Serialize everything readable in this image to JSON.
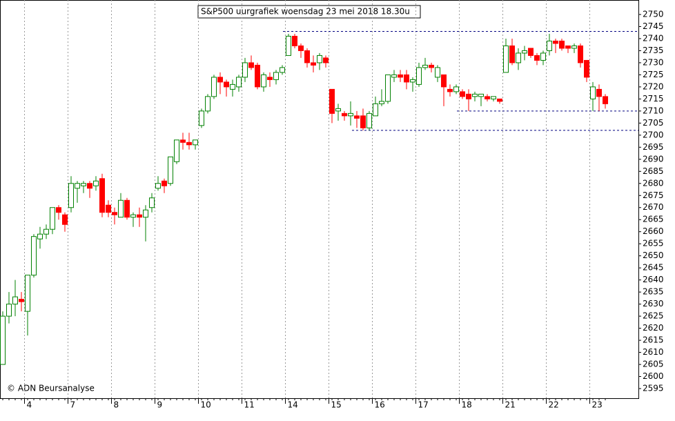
{
  "chart_data": {
    "type": "candlestick",
    "title": "S&P500 uurgrafiek woensdag 23 mei 2018  18.30u",
    "copyright": "© ADN Beursanalyse",
    "categories": [
      null,
      null,
      null,
      null,
      "4",
      null,
      null,
      null,
      null,
      null,
      null,
      "7",
      null,
      null,
      null,
      null,
      null,
      null,
      "8",
      null,
      null,
      null,
      null,
      null,
      null,
      "9",
      null,
      null,
      null,
      null,
      null,
      null,
      "10",
      null,
      null,
      null,
      null,
      null,
      null,
      "11",
      null,
      null,
      null,
      null,
      null,
      null,
      "14",
      null,
      null,
      null,
      null,
      null,
      null,
      "15",
      null,
      null,
      null,
      null,
      null,
      null,
      "16",
      null,
      null,
      null,
      null,
      null,
      null,
      "17",
      null,
      null,
      null,
      null,
      null,
      null,
      "18",
      null,
      null,
      null,
      null,
      null,
      null,
      "21",
      null,
      null,
      null,
      null,
      null,
      null,
      "22",
      null,
      null,
      null,
      null,
      null,
      null,
      "23",
      null,
      null
    ],
    "open": [
      2605,
      2625,
      2630,
      2632,
      2627,
      2642,
      2657,
      2659,
      2661,
      2670,
      2667,
      2670,
      2678,
      2679,
      2680,
      2679,
      2682,
      2671,
      2668,
      2666,
      2673,
      2666,
      2667,
      2666,
      2670,
      2678,
      2681,
      2680,
      2689,
      2698,
      2697,
      2696,
      2704,
      2710,
      2716,
      2724,
      2722,
      2719,
      2720,
      2724,
      2730,
      2729,
      2720,
      2724,
      2723,
      2726,
      2733,
      2741,
      2737,
      2735,
      2730,
      2730,
      2732,
      2719,
      2710,
      2709,
      2708,
      2708,
      2708,
      2703,
      2708,
      2713,
      2714,
      2724,
      2725,
      2725,
      2722,
      2721,
      2728,
      2729,
      2724,
      2725,
      2719,
      2718,
      2718,
      2717,
      2716,
      2716,
      2716,
      2715,
      2715,
      2726,
      2737,
      2730,
      2734,
      2736,
      2733,
      2731,
      2735,
      2739,
      2739,
      2737,
      2736,
      2737,
      2731,
      2715,
      2719,
      2716
    ],
    "high": [
      2627,
      2635,
      2640,
      2635,
      2642,
      2659,
      2662,
      2663,
      2670,
      2671,
      2668,
      2683,
      2681,
      2681,
      2681,
      2683,
      2684,
      2673,
      2670,
      2676,
      2674,
      2668,
      2670,
      2671,
      2676,
      2683,
      2682,
      2691,
      2698,
      2701,
      2701,
      2698,
      2711,
      2717,
      2725,
      2726,
      2723,
      2723,
      2725,
      2732,
      2733,
      2730,
      2726,
      2726,
      2727,
      2729,
      2742,
      2742,
      2738,
      2736,
      2733,
      2734,
      2733,
      2719,
      2713,
      2710,
      2714,
      2710,
      2711,
      2710,
      2716,
      2719,
      2725,
      2727,
      2727,
      2727,
      2724,
      2730,
      2732,
      2730,
      2729,
      2725,
      2721,
      2721,
      2719,
      2719,
      2718,
      2717,
      2717,
      2716,
      2715,
      2740,
      2740,
      2736,
      2737,
      2736,
      2734,
      2735,
      2742,
      2740,
      2740,
      2737,
      2738,
      2738,
      2731,
      2722,
      2721,
      2717
    ],
    "low": [
      2605,
      2622,
      2625,
      2627,
      2617,
      2641,
      2653,
      2657,
      2659,
      2665,
      2660,
      2668,
      2672,
      2676,
      2674,
      2677,
      2666,
      2666,
      2663,
      2666,
      2665,
      2662,
      2662,
      2656,
      2668,
      2677,
      2676,
      2679,
      2688,
      2694,
      2694,
      2694,
      2703,
      2709,
      2715,
      2717,
      2716,
      2716,
      2718,
      2722,
      2727,
      2719,
      2718,
      2720,
      2721,
      2725,
      2733,
      2736,
      2732,
      2728,
      2726,
      2727,
      2728,
      2705,
      2706,
      2706,
      2704,
      2703,
      2702,
      2702,
      2708,
      2712,
      2713,
      2722,
      2722,
      2719,
      2718,
      2720,
      2727,
      2726,
      2722,
      2712,
      2716,
      2717,
      2715,
      2710,
      2714,
      2712,
      2714,
      2714,
      2713,
      2726,
      2729,
      2727,
      2731,
      2732,
      2729,
      2729,
      2733,
      2734,
      2735,
      2734,
      2734,
      2728,
      2722,
      2710,
      2710,
      2711
    ],
    "close": [
      2625,
      2630,
      2633,
      2631,
      2642,
      2658,
      2659,
      2661,
      2670,
      2668,
      2663,
      2680,
      2680,
      2680,
      2678,
      2681,
      2668,
      2668,
      2667,
      2673,
      2666,
      2667,
      2666,
      2669,
      2674,
      2680,
      2679,
      2691,
      2698,
      2697,
      2696,
      2698,
      2710,
      2716,
      2724,
      2722,
      2720,
      2721,
      2724,
      2730,
      2728,
      2720,
      2725,
      2723,
      2726,
      2728,
      2741,
      2737,
      2735,
      2730,
      2729,
      2733,
      2730,
      2709,
      2711,
      2708,
      2709,
      2707,
      2703,
      2709,
      2713,
      2714,
      2725,
      2725,
      2724,
      2722,
      2723,
      2728,
      2729,
      2728,
      2728,
      2720,
      2718,
      2720,
      2716,
      2715,
      2717,
      2717,
      2715,
      2716,
      2714,
      2737,
      2730,
      2734,
      2735,
      2733,
      2731,
      2734,
      2739,
      2738,
      2736,
      2736,
      2737,
      2730,
      2724,
      2720,
      2716,
      2713
    ],
    "up_color": "#008000",
    "down_color": "#ff0000",
    "level_color": "#000080",
    "levels": [
      2743,
      2710,
      2702
    ],
    "ylim": [
      2591,
      2756
    ],
    "yticks": [
      2595,
      2600,
      2605,
      2610,
      2615,
      2620,
      2625,
      2630,
      2635,
      2640,
      2645,
      2650,
      2655,
      2660,
      2665,
      2670,
      2675,
      2680,
      2685,
      2690,
      2695,
      2700,
      2705,
      2710,
      2715,
      2720,
      2725,
      2730,
      2735,
      2740,
      2745,
      2750
    ]
  }
}
